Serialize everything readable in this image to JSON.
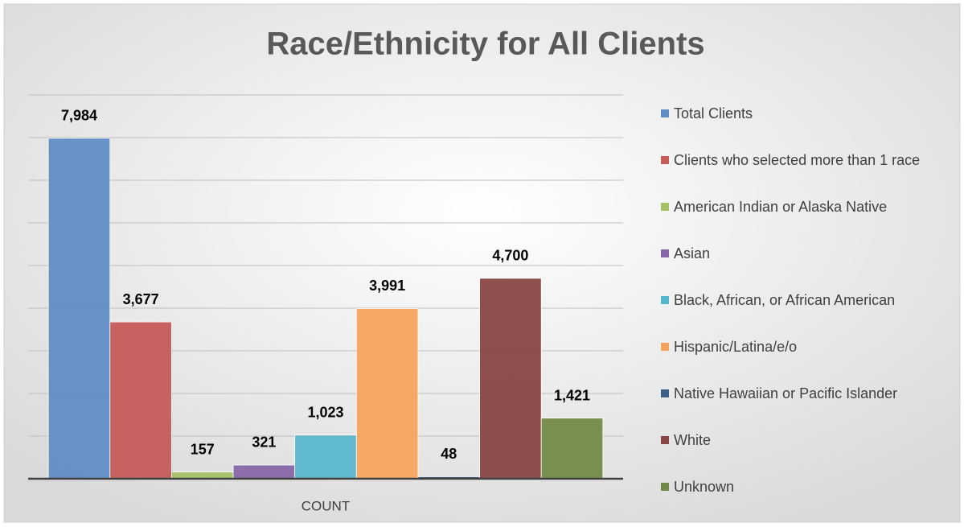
{
  "chart_data": {
    "type": "bar",
    "title": "Race/Ethnicity for All Clients",
    "categories": [
      "COUNT"
    ],
    "series": [
      {
        "name": "Total Clients",
        "color": "#5f8dc6",
        "values": [
          7984
        ],
        "value_labels": [
          "7,984"
        ]
      },
      {
        "name": "Clients who selected more than 1 race",
        "color": "#c65b58",
        "values": [
          3677
        ],
        "value_labels": [
          "3,677"
        ]
      },
      {
        "name": "American Indian or Alaska Native",
        "color": "#a4c165",
        "values": [
          157
        ],
        "value_labels": [
          "157"
        ]
      },
      {
        "name": "Asian",
        "color": "#8767a8",
        "values": [
          321
        ],
        "value_labels": [
          "321"
        ]
      },
      {
        "name": "Black, African, or African American",
        "color": "#58b6cb",
        "values": [
          1023
        ],
        "value_labels": [
          "1,023"
        ]
      },
      {
        "name": "Hispanic/Latina/e/o",
        "color": "#f5a45e",
        "values": [
          3991
        ],
        "value_labels": [
          "3,991"
        ]
      },
      {
        "name": "Native Hawaiian or Pacific Islander",
        "color": "#3b5f86",
        "values": [
          48
        ],
        "value_labels": [
          "48"
        ]
      },
      {
        "name": "White",
        "color": "#8a4646",
        "values": [
          4700
        ],
        "value_labels": [
          "4,700"
        ]
      },
      {
        "name": "Unknown",
        "color": "#728a48",
        "values": [
          1421
        ],
        "value_labels": [
          "1,421"
        ]
      }
    ],
    "ylim": [
      0,
      9000
    ],
    "yticks": [
      0,
      1000,
      2000,
      3000,
      4000,
      5000,
      6000,
      7000,
      8000,
      9000
    ],
    "grid": true,
    "legend": "right"
  }
}
